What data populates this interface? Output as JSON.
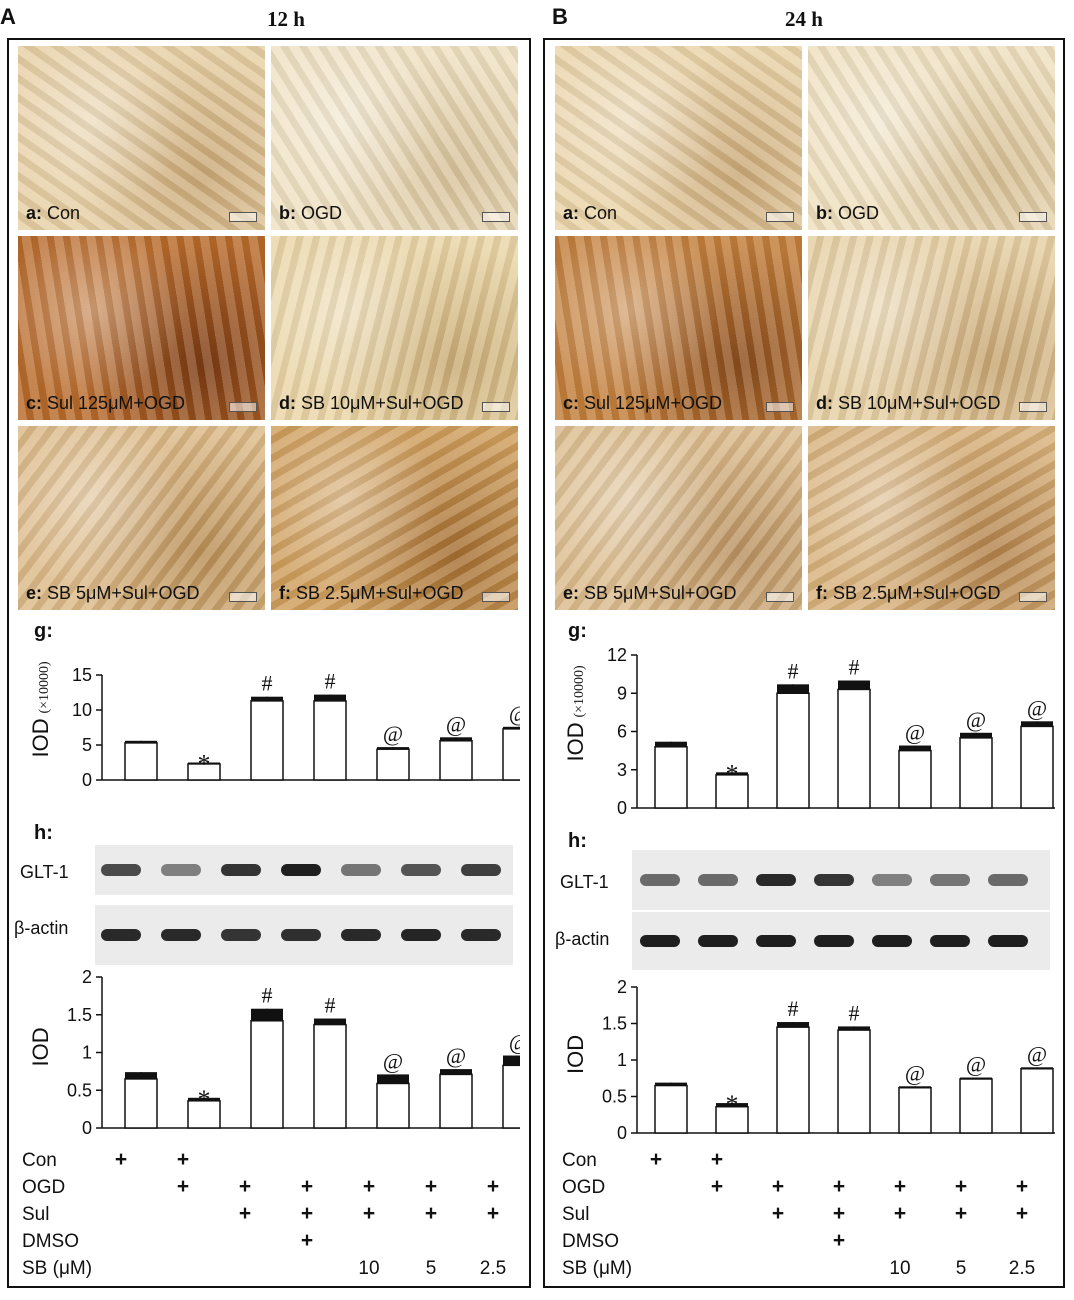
{
  "panels": [
    {
      "letter": "A",
      "time": "12 h",
      "images": [
        {
          "letter": "a:",
          "label": "Con",
          "tone": "#e7cfa4",
          "dark": "#c9a775"
        },
        {
          "letter": "b:",
          "label": "OGD",
          "tone": "#efe1c2",
          "dark": "#d8c29a"
        },
        {
          "letter": "c:",
          "label": "Sul 125μM+OGD",
          "tone": "#b86a2a",
          "dark": "#7a3a12"
        },
        {
          "letter": "d:",
          "label": "SB 10μM+Sul+OGD",
          "tone": "#ead5a6",
          "dark": "#c9ab74"
        },
        {
          "letter": "e:",
          "label": "SB 5μM+Sul+OGD",
          "tone": "#dcb987",
          "dark": "#b88e55"
        },
        {
          "letter": "f:",
          "label": "SB 2.5μM+Sul+OGD",
          "tone": "#cf9e5c",
          "dark": "#a46e31"
        }
      ],
      "g_label": "g:",
      "h_label": "h:",
      "blot_labels": [
        "GLT-1",
        "β-actin"
      ],
      "conditions": {
        "rows": [
          "Con",
          "OGD",
          "Sul",
          "DMSO",
          "SB (μM)"
        ],
        "cells": [
          [
            "+",
            "+",
            "",
            "",
            "",
            "",
            ""
          ],
          [
            "",
            "+",
            "+",
            "+",
            "+",
            "+",
            "+"
          ],
          [
            "",
            "",
            "+",
            "+",
            "+",
            "+",
            "+"
          ],
          [
            "",
            "",
            "",
            "+",
            "",
            "",
            ""
          ],
          [
            "",
            "",
            "",
            "",
            "10",
            "5",
            "2.5"
          ]
        ]
      }
    },
    {
      "letter": "B",
      "time": "24 h",
      "images": [
        {
          "letter": "a:",
          "label": "Con",
          "tone": "#ead3a8",
          "dark": "#caa877"
        },
        {
          "letter": "b:",
          "label": "OGD",
          "tone": "#efe0bf",
          "dark": "#d6be93"
        },
        {
          "letter": "c:",
          "label": "Sul 125μM+OGD",
          "tone": "#c27e3a",
          "dark": "#8a4c1c"
        },
        {
          "letter": "d:",
          "label": "SB 10μM+Sul+OGD",
          "tone": "#e6cfa3",
          "dark": "#c7a572"
        },
        {
          "letter": "e:",
          "label": "SB 5μM+Sul+OGD",
          "tone": "#dcbc8d",
          "dark": "#b99160"
        },
        {
          "letter": "f:",
          "label": "SB 2.5μM+Sul+OGD",
          "tone": "#d8b17b",
          "dark": "#b2824a"
        }
      ],
      "g_label": "g:",
      "h_label": "h:",
      "blot_labels": [
        "GLT-1",
        "β-actin"
      ],
      "conditions": {
        "rows": [
          "Con",
          "OGD",
          "Sul",
          "DMSO",
          "SB (μM)"
        ],
        "cells": [
          [
            "+",
            "+",
            "",
            "",
            "",
            "",
            ""
          ],
          [
            "",
            "+",
            "+",
            "+",
            "+",
            "+",
            "+"
          ],
          [
            "",
            "",
            "+",
            "+",
            "+",
            "+",
            "+"
          ],
          [
            "",
            "",
            "",
            "+",
            "",
            "",
            ""
          ],
          [
            "",
            "",
            "",
            "",
            "10",
            "5",
            "2.5"
          ]
        ]
      }
    }
  ],
  "chart_data": [
    {
      "type": "bar",
      "panel": "A-g",
      "ylabel": "IOD",
      "ylabel_unit": "(×10000)",
      "ylim": [
        0,
        15
      ],
      "yticks": [
        "0",
        "5",
        "10",
        "15"
      ],
      "values": [
        5.3,
        2.3,
        11.3,
        11.3,
        4.4,
        5.6,
        7.3
      ],
      "errors": [
        0.3,
        0.2,
        0.6,
        0.9,
        0.3,
        0.5,
        0.3
      ],
      "marks": [
        "",
        "*",
        "#",
        "#",
        "@",
        "@",
        "@"
      ]
    },
    {
      "type": "bar",
      "panel": "B-g",
      "ylabel": "IOD",
      "ylabel_unit": "(×10000)",
      "ylim": [
        0,
        12
      ],
      "yticks": [
        "0",
        "3",
        "6",
        "9",
        "12"
      ],
      "values": [
        4.8,
        2.6,
        9.0,
        9.3,
        4.5,
        5.5,
        6.4
      ],
      "errors": [
        0.4,
        0.2,
        0.7,
        0.7,
        0.4,
        0.4,
        0.4
      ],
      "marks": [
        "",
        "*",
        "#",
        "#",
        "@",
        "@",
        "@"
      ]
    },
    {
      "type": "bar",
      "panel": "A-h",
      "ylabel": "IOD",
      "ylim": [
        0,
        2
      ],
      "yticks": [
        "0",
        "0.5",
        "1",
        "1.5",
        "2"
      ],
      "values": [
        0.65,
        0.36,
        1.42,
        1.37,
        0.59,
        0.71,
        0.83
      ],
      "errors": [
        0.09,
        0.04,
        0.16,
        0.08,
        0.12,
        0.07,
        0.13
      ],
      "marks": [
        "",
        "*",
        "#",
        "#",
        "@",
        "@",
        "@"
      ]
    },
    {
      "type": "bar",
      "panel": "B-h",
      "ylabel": "IOD",
      "ylim": [
        0,
        2
      ],
      "yticks": [
        "0",
        "0.5",
        "1",
        "1.5",
        "2"
      ],
      "values": [
        0.65,
        0.36,
        1.45,
        1.41,
        0.62,
        0.74,
        0.88
      ],
      "errors": [
        0.04,
        0.05,
        0.07,
        0.05,
        0.02,
        0.02,
        0.02
      ],
      "marks": [
        "",
        "*",
        "#",
        "#",
        "@",
        "@",
        "@"
      ]
    }
  ],
  "blots": [
    {
      "panel": "A",
      "glt1": [
        0.75,
        0.5,
        0.85,
        0.95,
        0.55,
        0.7,
        0.8
      ],
      "actin": [
        0.9,
        0.9,
        0.85,
        0.88,
        0.9,
        0.92,
        0.9
      ]
    },
    {
      "panel": "B",
      "glt1": [
        0.6,
        0.6,
        0.9,
        0.85,
        0.5,
        0.55,
        0.6
      ],
      "actin": [
        0.95,
        0.95,
        0.95,
        0.95,
        0.95,
        0.95,
        0.95
      ]
    }
  ]
}
